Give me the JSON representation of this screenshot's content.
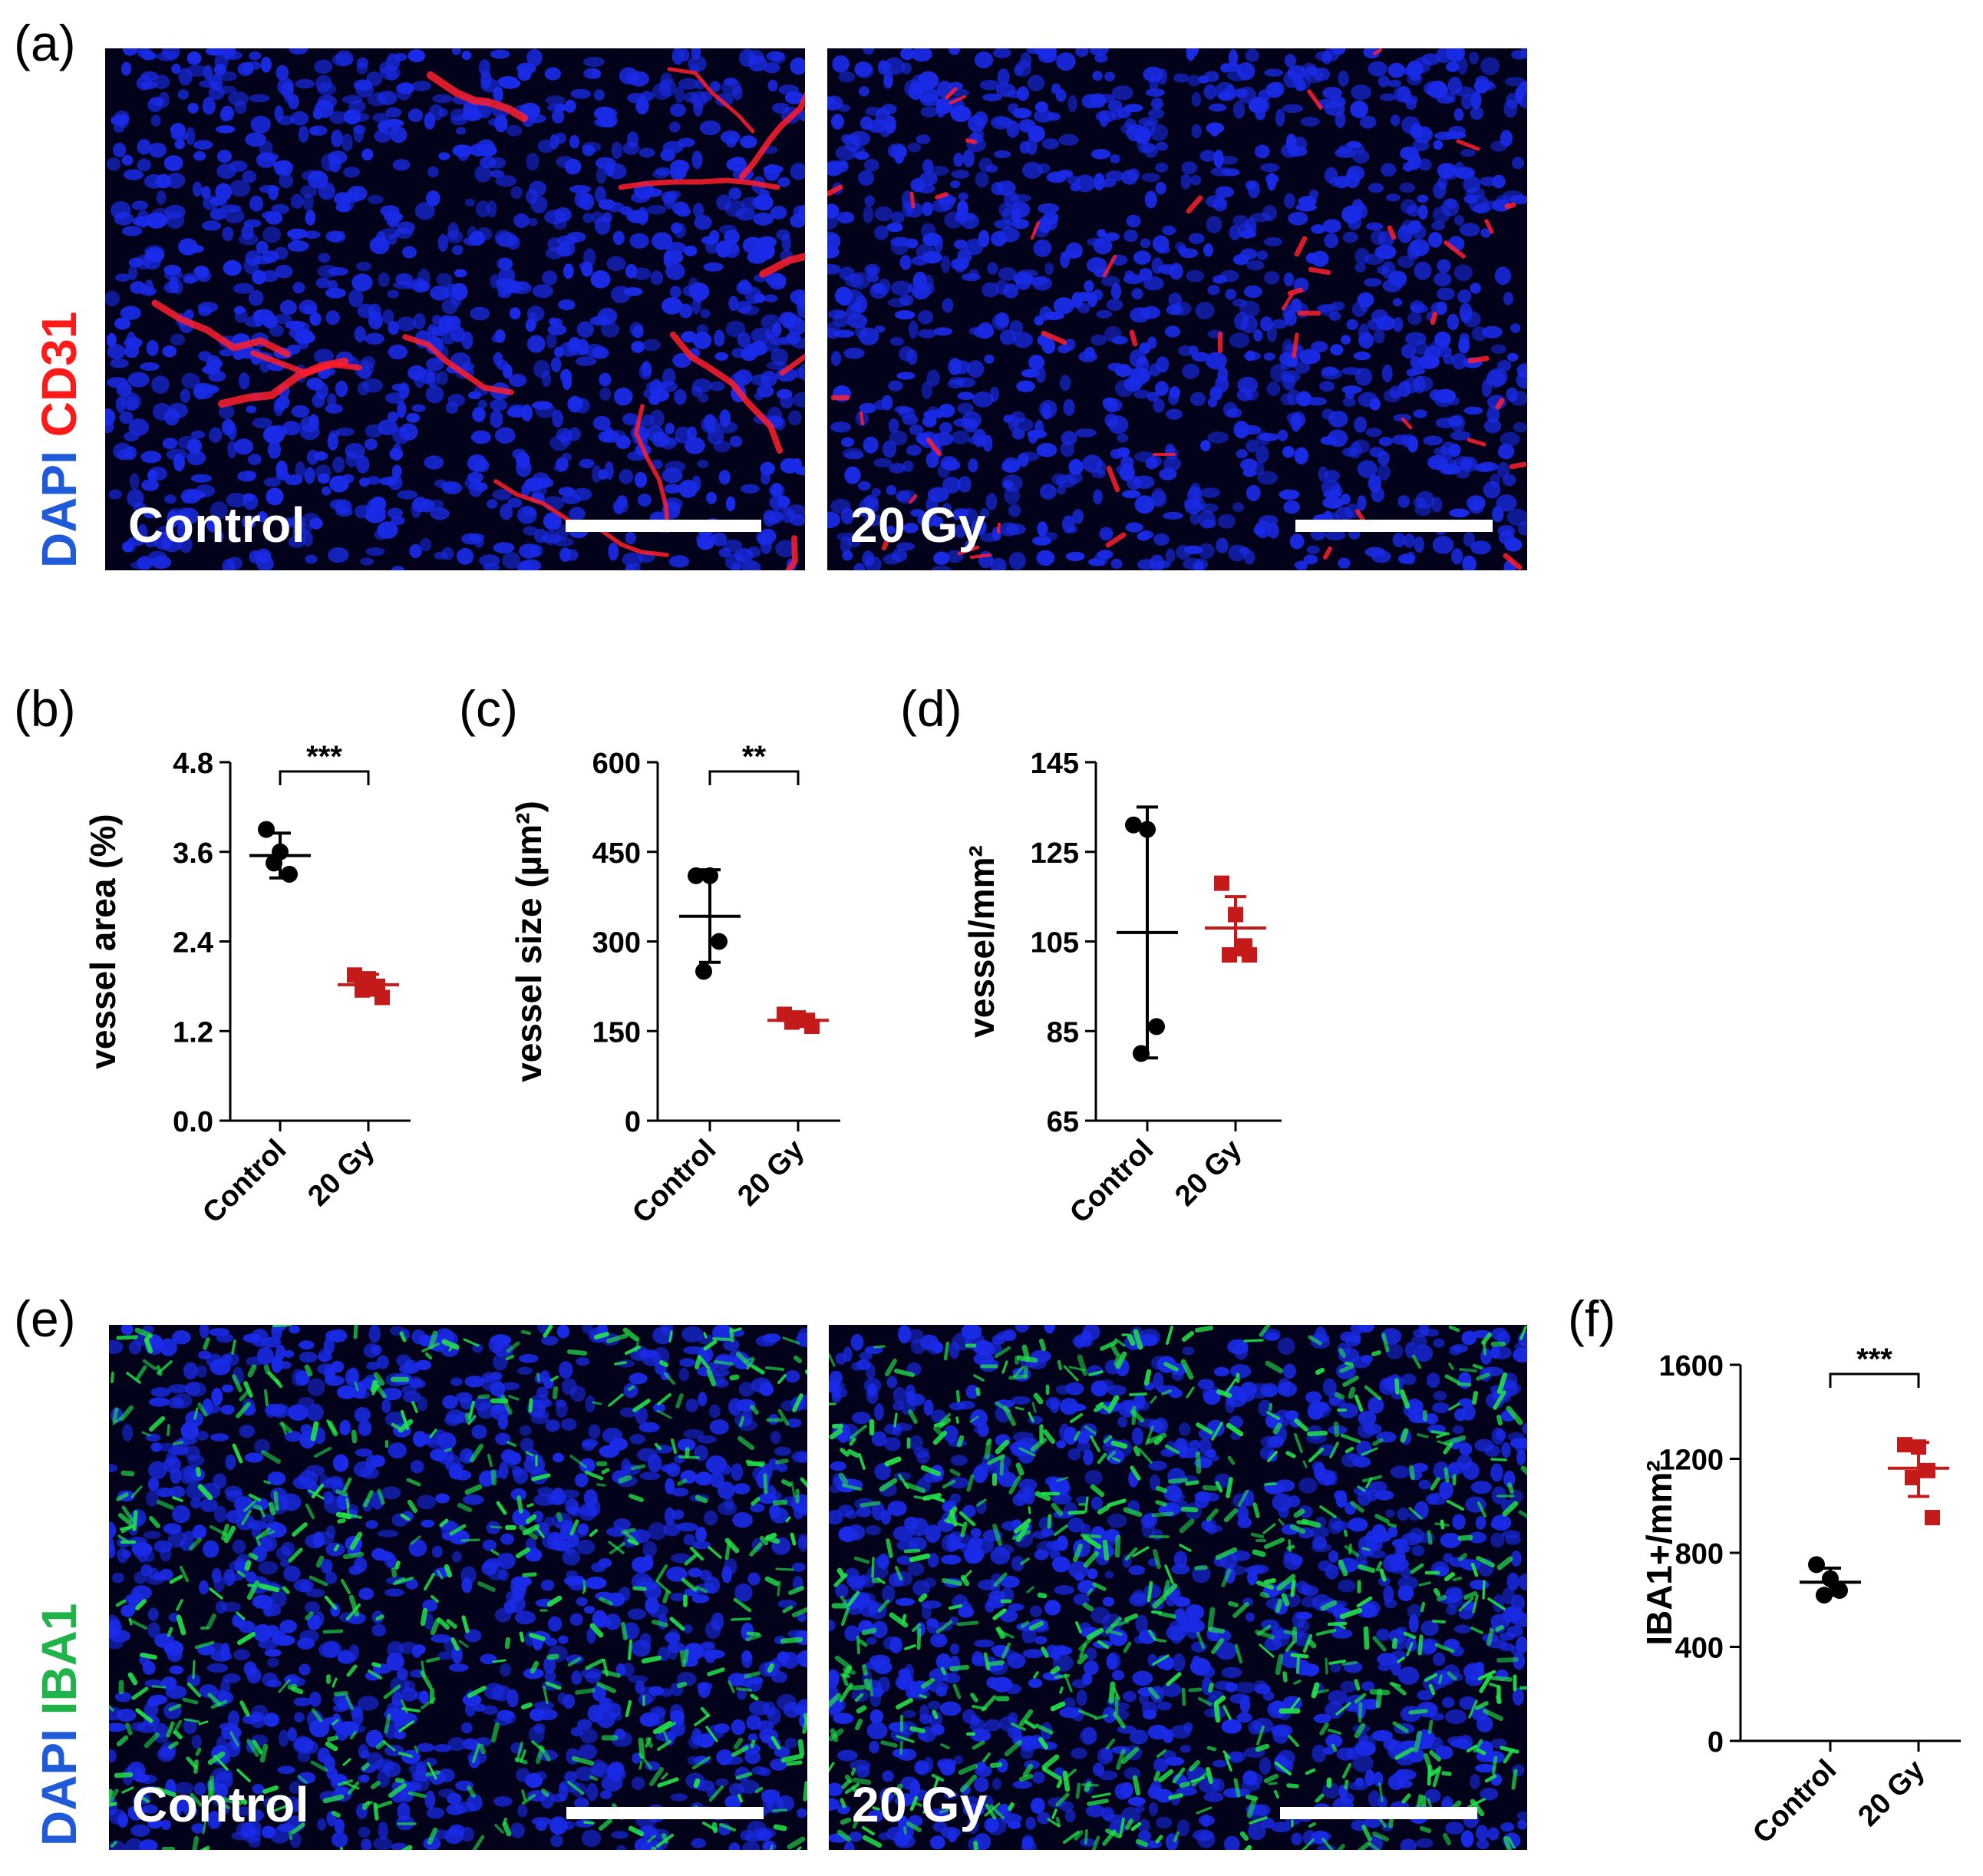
{
  "panels": {
    "a": "(a)",
    "b": "(b)",
    "c": "(c)",
    "d": "(d)",
    "e": "(e)",
    "f": "(f)"
  },
  "micrographs": {
    "a": {
      "stain_blue": "DAPI",
      "stain_color": "CD31",
      "left_label": "Control",
      "right_label": "20 Gy",
      "colors": {
        "nuclei": "#1a2be8",
        "marker": "#ff1f2e",
        "background": "#02031a"
      }
    },
    "e": {
      "stain_blue": "DAPI",
      "stain_color": "IBA1",
      "left_label": "Control",
      "right_label": "20 Gy",
      "colors": {
        "nuclei": "#1a2be8",
        "marker": "#22e04a",
        "background": "#02031a"
      }
    }
  },
  "chart_data": [
    {
      "id": "b",
      "type": "scatter",
      "ylabel": "vessel area (%)",
      "categories": [
        "Control",
        "20 Gy"
      ],
      "ylim": [
        0,
        4.8
      ],
      "yticks": [
        "0.0",
        "1.2",
        "2.4",
        "3.6",
        "4.8"
      ],
      "significance": "***",
      "series": [
        {
          "values": [
            3.9,
            3.6,
            3.3,
            3.45
          ],
          "mean": 3.55,
          "sd_low": 3.25,
          "sd_high": 3.85,
          "color": "#000000",
          "marker": "circle"
        },
        {
          "values": [
            1.95,
            1.9,
            1.8,
            1.75,
            1.65
          ],
          "mean": 1.82,
          "sd_low": 1.68,
          "sd_high": 1.96,
          "color": "#c41a1a",
          "marker": "square"
        }
      ]
    },
    {
      "id": "c",
      "type": "scatter",
      "ylabel": "vessel size (µm²)",
      "categories": [
        "Control",
        "20 Gy"
      ],
      "ylim": [
        0,
        600
      ],
      "yticks": [
        "0",
        "150",
        "300",
        "450",
        "600"
      ],
      "significance": "**",
      "series": [
        {
          "values": [
            410,
            410,
            300,
            250
          ],
          "mean": 342,
          "sd_low": 265,
          "sd_high": 420,
          "color": "#000000",
          "marker": "circle"
        },
        {
          "values": [
            178,
            172,
            168,
            165,
            158
          ],
          "mean": 168,
          "sd_low": 160,
          "sd_high": 176,
          "color": "#c41a1a",
          "marker": "square"
        }
      ]
    },
    {
      "id": "d",
      "type": "scatter",
      "ylabel": "vessel/mm²",
      "categories": [
        "Control",
        "20 Gy"
      ],
      "ylim": [
        65,
        145
      ],
      "yticks": [
        "65",
        "85",
        "105",
        "125",
        "145"
      ],
      "significance": "",
      "series": [
        {
          "values": [
            131,
            130,
            86,
            80
          ],
          "mean": 107,
          "sd_low": 79,
          "sd_high": 135,
          "color": "#000000",
          "marker": "circle"
        },
        {
          "values": [
            118,
            111,
            104,
            102,
            102
          ],
          "mean": 108,
          "sd_low": 102,
          "sd_high": 115,
          "color": "#c41a1a",
          "marker": "square"
        }
      ]
    },
    {
      "id": "f",
      "type": "scatter",
      "ylabel": "IBA1+/mm²",
      "categories": [
        "Control",
        "20 Gy"
      ],
      "ylim": [
        0,
        1600
      ],
      "yticks": [
        "0",
        "400",
        "800",
        "1200",
        "1600"
      ],
      "significance": "***",
      "series": [
        {
          "values": [
            750,
            690,
            640,
            620
          ],
          "mean": 675,
          "sd_low": 620,
          "sd_high": 735,
          "color": "#000000",
          "marker": "circle"
        },
        {
          "values": [
            1260,
            1250,
            1150,
            1120,
            950
          ],
          "mean": 1160,
          "sd_low": 1040,
          "sd_high": 1270,
          "color": "#c41a1a",
          "marker": "square"
        }
      ]
    }
  ]
}
